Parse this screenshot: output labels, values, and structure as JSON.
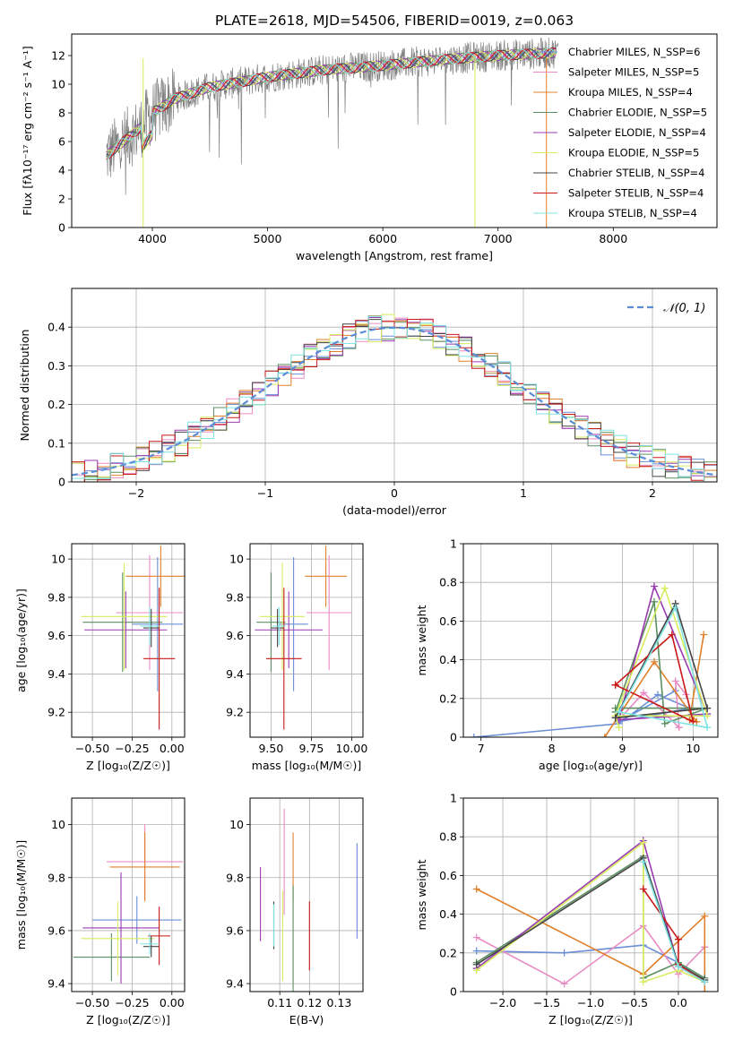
{
  "title": "PLATE=2618, MJD=54506, FIBERID=0019, z=0.063",
  "colors": {
    "chab_miles": "#6a8fd6",
    "salp_miles": "#e98cc4",
    "krou_miles": "#e0802c",
    "chab_elodie": "#5a8f5f",
    "salp_elodie": "#9a3bb0",
    "krou_elodie": "#d7ec5e",
    "chab_stelib": "#444444",
    "salp_stelib": "#c81818",
    "krou_stelib": "#7fe3e3",
    "data": "#808080",
    "grid": "#b0b0b0",
    "normal": "#5b8dd6"
  },
  "chart_data": [
    {
      "type": "line",
      "title": "PLATE=2618, MJD=54506, FIBERID=0019, z=0.063",
      "xlabel": "wavelength [Angstrom, rest frame]",
      "ylabel": "Flux [fλ10⁻¹⁷ erg cm⁻² s⁻¹ A⁻¹]",
      "xlim": [
        3300,
        8900
      ],
      "ylim": [
        0,
        13.5
      ],
      "xticks": [
        4000,
        5000,
        6000,
        7000,
        8000
      ],
      "yticks": [
        0,
        2,
        4,
        6,
        8,
        10,
        12
      ],
      "legend": "right",
      "continuum": {
        "x": [
          3600,
          3750,
          3900,
          4000,
          4200,
          4500,
          4800,
          5000,
          5500,
          6000,
          6500,
          7000,
          7500,
          7800
        ],
        "y": [
          5.0,
          6.0,
          7.0,
          8.0,
          9.0,
          9.8,
          10.2,
          10.5,
          11.0,
          11.3,
          11.7,
          12.0,
          12.2,
          11.8
        ]
      },
      "series": [
        {
          "name": "Chabrier MILES, N_SSP=6"
        },
        {
          "name": "Salpeter MILES, N_SSP=5"
        },
        {
          "name": "Kroupa MILES, N_SSP=4"
        },
        {
          "name": "Chabrier ELODIE, N_SSP=5"
        },
        {
          "name": "Salpeter ELODIE, N_SSP=4"
        },
        {
          "name": "Kroupa ELODIE, N_SSP=5"
        },
        {
          "name": "Chabrier STELIB, N_SSP=4"
        },
        {
          "name": "Salpeter STELIB, N_SSP=4"
        },
        {
          "name": "Kroupa STELIB, N_SSP=4"
        }
      ]
    },
    {
      "type": "histogram",
      "xlabel": "(data-model)/error",
      "ylabel": "Normed distribution",
      "xlim": [
        -2.5,
        2.5
      ],
      "ylim": [
        0,
        0.5
      ],
      "xticks": [
        -2,
        -1,
        0,
        1,
        2
      ],
      "yticks": [
        0.0,
        0.1,
        0.2,
        0.3,
        0.4
      ],
      "legend": "top-right",
      "normal_label": "𝒩(0, 1)",
      "bins": [
        -2.5,
        2.5,
        50
      ]
    },
    {
      "type": "errorbar",
      "xlabel": "Z [log₁₀(Z/Z☉)]",
      "ylabel": "age  [log₁₀(age/yr)]",
      "xlim": [
        -0.63,
        0.08
      ],
      "ylim": [
        9.07,
        10.08
      ],
      "xticks": [
        -0.5,
        -0.25,
        0.0
      ],
      "xticklabels": [
        "−0.50",
        "−0.25",
        "0.00"
      ],
      "yticks": [
        9.2,
        9.4,
        9.6,
        9.8,
        10.0
      ],
      "points": [
        {
          "c": "chab_miles",
          "x": -0.09,
          "xerr": 0.16,
          "y": 9.66,
          "yerr": 0.35
        },
        {
          "c": "salp_miles",
          "x": -0.14,
          "xerr": 0.21,
          "y": 9.72,
          "yerr": 0.3
        },
        {
          "c": "krou_miles",
          "x": -0.07,
          "xerr": 0.22,
          "y": 9.91,
          "yerr": 0.16
        },
        {
          "c": "chab_elodie",
          "x": -0.31,
          "xerr": 0.25,
          "y": 9.67,
          "yerr": 0.26
        },
        {
          "c": "salp_elodie",
          "x": -0.29,
          "xerr": 0.26,
          "y": 9.63,
          "yerr": 0.2
        },
        {
          "c": "krou_elodie",
          "x": -0.3,
          "xerr": 0.27,
          "y": 9.7,
          "yerr": 0.28
        },
        {
          "c": "chab_stelib",
          "x": -0.13,
          "xerr": 0.05,
          "y": 9.64,
          "yerr": 0.1
        },
        {
          "c": "salp_stelib",
          "x": -0.08,
          "xerr": 0.1,
          "y": 9.48,
          "yerr": 0.37
        },
        {
          "c": "krou_stelib",
          "x": -0.14,
          "xerr": 0.06,
          "y": 9.65,
          "yerr": 0.1
        }
      ]
    },
    {
      "type": "errorbar",
      "xlabel": "mass [log₁₀(M/M☉)]",
      "ylabel": "",
      "xlim": [
        9.37,
        10.07
      ],
      "ylim": [
        9.07,
        10.08
      ],
      "xticks": [
        9.5,
        9.75,
        10.0
      ],
      "xticklabels": [
        "9.50",
        "9.75",
        "10.00"
      ],
      "yticks": [
        9.2,
        9.4,
        9.6,
        9.8,
        10.0
      ],
      "points": [
        {
          "c": "chab_miles",
          "x": 9.64,
          "xerr": 0.09,
          "y": 9.66,
          "yerr": 0.35
        },
        {
          "c": "salp_miles",
          "x": 9.86,
          "xerr": 0.14,
          "y": 9.72,
          "yerr": 0.3
        },
        {
          "c": "krou_miles",
          "x": 9.84,
          "xerr": 0.13,
          "y": 9.91,
          "yerr": 0.16
        },
        {
          "c": "chab_elodie",
          "x": 9.5,
          "xerr": 0.09,
          "y": 9.67,
          "yerr": 0.26
        },
        {
          "c": "salp_elodie",
          "x": 9.61,
          "xerr": 0.21,
          "y": 9.63,
          "yerr": 0.2
        },
        {
          "c": "krou_elodie",
          "x": 9.57,
          "xerr": 0.14,
          "y": 9.7,
          "yerr": 0.28
        },
        {
          "c": "chab_stelib",
          "x": 9.54,
          "xerr": 0.04,
          "y": 9.64,
          "yerr": 0.1
        },
        {
          "c": "salp_stelib",
          "x": 9.58,
          "xerr": 0.11,
          "y": 9.48,
          "yerr": 0.37
        },
        {
          "c": "krou_stelib",
          "x": 9.55,
          "xerr": 0.04,
          "y": 9.65,
          "yerr": 0.1
        }
      ]
    },
    {
      "type": "line",
      "xlabel": "age  [log₁₀(age/yr)]",
      "ylabel": "mass weight",
      "xlim": [
        6.75,
        10.35
      ],
      "ylim": [
        0,
        1
      ],
      "xticks": [
        7,
        8,
        9,
        10
      ],
      "yticks": [
        0.0,
        0.2,
        0.4,
        0.6,
        0.8,
        1.0
      ],
      "series": [
        {
          "c": "chab_miles",
          "x": [
            6.9,
            8.95,
            9.5,
            9.95,
            8.95,
            9.75
          ],
          "y": [
            0.0,
            0.07,
            0.22,
            0.15,
            0.08,
            0.24
          ]
        },
        {
          "c": "salp_miles",
          "x": [
            8.95,
            9.3,
            9.8,
            9.75,
            9.9
          ],
          "y": [
            0.09,
            0.23,
            0.05,
            0.29,
            0.22
          ]
        },
        {
          "c": "krou_miles",
          "x": [
            8.75,
            9.45,
            10.05,
            9.95,
            10.15
          ],
          "y": [
            0.0,
            0.39,
            0.08,
            0.09,
            0.53
          ]
        },
        {
          "c": "chab_elodie",
          "x": [
            8.9,
            9.45,
            9.6,
            10.2,
            8.9
          ],
          "y": [
            0.13,
            0.7,
            0.07,
            0.15,
            0.15
          ]
        },
        {
          "c": "salp_elodie",
          "x": [
            8.95,
            9.45,
            10.2,
            8.95
          ],
          "y": [
            0.09,
            0.78,
            0.12,
            0.09
          ]
        },
        {
          "c": "krou_elodie",
          "x": [
            8.9,
            9.6,
            10.2,
            8.9,
            8.95
          ],
          "y": [
            0.11,
            0.77,
            0.11,
            0.11,
            0.05
          ]
        },
        {
          "c": "chab_stelib",
          "x": [
            8.9,
            9.75,
            10.2,
            8.9
          ],
          "y": [
            0.1,
            0.69,
            0.15,
            0.1
          ]
        },
        {
          "c": "salp_stelib",
          "x": [
            8.9,
            9.7,
            10.0,
            8.9
          ],
          "y": [
            0.27,
            0.53,
            0.08,
            0.27
          ]
        },
        {
          "c": "krou_stelib",
          "x": [
            8.95,
            9.75,
            10.2,
            8.95
          ],
          "y": [
            0.13,
            0.67,
            0.05,
            0.13
          ]
        }
      ]
    },
    {
      "type": "errorbar",
      "xlabel": "Z [log₁₀(Z/Z☉)]",
      "ylabel": "mass [log₁₀(M/M☉)]",
      "xlim": [
        -0.63,
        0.08
      ],
      "ylim": [
        9.37,
        10.1
      ],
      "xticks": [
        -0.5,
        -0.25,
        0.0
      ],
      "xticklabels": [
        "−0.50",
        "−0.25",
        "0.00"
      ],
      "yticks": [
        9.4,
        9.6,
        9.8,
        10.0
      ],
      "points": [
        {
          "c": "chab_miles",
          "x": -0.22,
          "xerr": 0.28,
          "y": 9.64,
          "yerr": 0.09
        },
        {
          "c": "salp_miles",
          "x": -0.17,
          "xerr": 0.24,
          "y": 9.86,
          "yerr": 0.14
        },
        {
          "c": "krou_miles",
          "x": -0.17,
          "xerr": 0.22,
          "y": 9.84,
          "yerr": 0.13
        },
        {
          "c": "chab_elodie",
          "x": -0.38,
          "xerr": 0.24,
          "y": 9.5,
          "yerr": 0.09
        },
        {
          "c": "salp_elodie",
          "x": -0.32,
          "xerr": 0.24,
          "y": 9.61,
          "yerr": 0.21
        },
        {
          "c": "krou_elodie",
          "x": -0.34,
          "xerr": 0.23,
          "y": 9.57,
          "yerr": 0.14
        },
        {
          "c": "chab_stelib",
          "x": -0.13,
          "xerr": 0.05,
          "y": 9.54,
          "yerr": 0.04
        },
        {
          "c": "salp_stelib",
          "x": -0.08,
          "xerr": 0.07,
          "y": 9.58,
          "yerr": 0.11
        },
        {
          "c": "krou_stelib",
          "x": -0.14,
          "xerr": 0.06,
          "y": 9.55,
          "yerr": 0.04
        }
      ]
    },
    {
      "type": "errorbar",
      "xlabel": "E(B-V)",
      "ylabel": "",
      "xlim": [
        0.1,
        0.138
      ],
      "ylim": [
        9.37,
        10.1
      ],
      "xticks": [
        0.11,
        0.12,
        0.13
      ],
      "xticklabels": [
        "0.11",
        "0.12",
        "0.13"
      ],
      "yticks": [
        9.4,
        9.6,
        9.8,
        10.0
      ],
      "points": [
        {
          "c": "chab_miles",
          "x": 0.136,
          "y": 9.75,
          "yerr": 0.18
        },
        {
          "c": "salp_miles",
          "x": 0.1115,
          "y": 9.86,
          "yerr": 0.2
        },
        {
          "c": "krou_miles",
          "x": 0.1145,
          "y": 9.84,
          "yerr": 0.13
        },
        {
          "c": "chab_elodie",
          "x": 0.1145,
          "y": 9.57,
          "yerr": 0.2
        },
        {
          "c": "salp_elodie",
          "x": 0.1035,
          "y": 9.7,
          "yerr": 0.14
        },
        {
          "c": "krou_elodie",
          "x": 0.111,
          "y": 9.58,
          "yerr": 0.17
        },
        {
          "c": "chab_stelib",
          "x": 0.108,
          "y": 9.62,
          "yerr": 0.09
        },
        {
          "c": "salp_stelib",
          "x": 0.12,
          "y": 9.58,
          "yerr": 0.13
        },
        {
          "c": "krou_stelib",
          "x": 0.108,
          "y": 9.62,
          "yerr": 0.08
        }
      ]
    },
    {
      "type": "line",
      "xlabel": "Z [log₁₀(Z/Z☉)]",
      "ylabel": "mass weight",
      "xlim": [
        -2.45,
        0.45
      ],
      "ylim": [
        0,
        1
      ],
      "xticks": [
        -2.0,
        -1.5,
        -1.0,
        -0.5,
        0.0
      ],
      "xticklabels": [
        "−2.0",
        "−1.5",
        "−1.0",
        "−0.5",
        "0.0"
      ],
      "yticks": [
        0.0,
        0.2,
        0.4,
        0.6,
        0.8,
        1.0
      ],
      "series": [
        {
          "c": "chab_miles",
          "x": [
            -2.3,
            -1.3,
            -0.4,
            0.0,
            0.3
          ],
          "y": [
            0.21,
            0.2,
            0.24,
            0.15,
            0.05
          ]
        },
        {
          "c": "salp_miles",
          "x": [
            -2.3,
            -1.3,
            -0.4,
            0.0,
            0.3
          ],
          "y": [
            0.28,
            0.04,
            0.34,
            0.09,
            0.23
          ]
        },
        {
          "c": "krou_miles",
          "x": [
            -2.3,
            -0.4,
            0.3,
            0.3
          ],
          "y": [
            0.53,
            0.09,
            0.39,
            0.0
          ]
        },
        {
          "c": "chab_elodie",
          "x": [
            -2.3,
            -0.4,
            -0.4,
            0.0,
            0.3
          ],
          "y": [
            0.15,
            0.7,
            0.07,
            0.15,
            0.07
          ]
        },
        {
          "c": "salp_elodie",
          "x": [
            -2.3,
            -0.4,
            0.0,
            0.3
          ],
          "y": [
            0.12,
            0.78,
            0.13,
            0.05
          ]
        },
        {
          "c": "krou_elodie",
          "x": [
            -2.3,
            -0.4,
            -0.4,
            0.0,
            0.3
          ],
          "y": [
            0.11,
            0.77,
            0.05,
            0.11,
            0.05
          ]
        },
        {
          "c": "chab_stelib",
          "x": [
            -2.3,
            -0.4,
            0.0,
            0.3
          ],
          "y": [
            0.14,
            0.69,
            0.14,
            0.06
          ]
        },
        {
          "c": "salp_stelib",
          "x": [
            -0.4,
            0.0,
            0.0,
            0.3
          ],
          "y": [
            0.53,
            0.27,
            0.14,
            0.05
          ]
        },
        {
          "c": "krou_stelib",
          "x": [
            -0.4,
            0.0,
            0.3
          ],
          "y": [
            0.67,
            0.13,
            0.05
          ]
        }
      ]
    }
  ]
}
